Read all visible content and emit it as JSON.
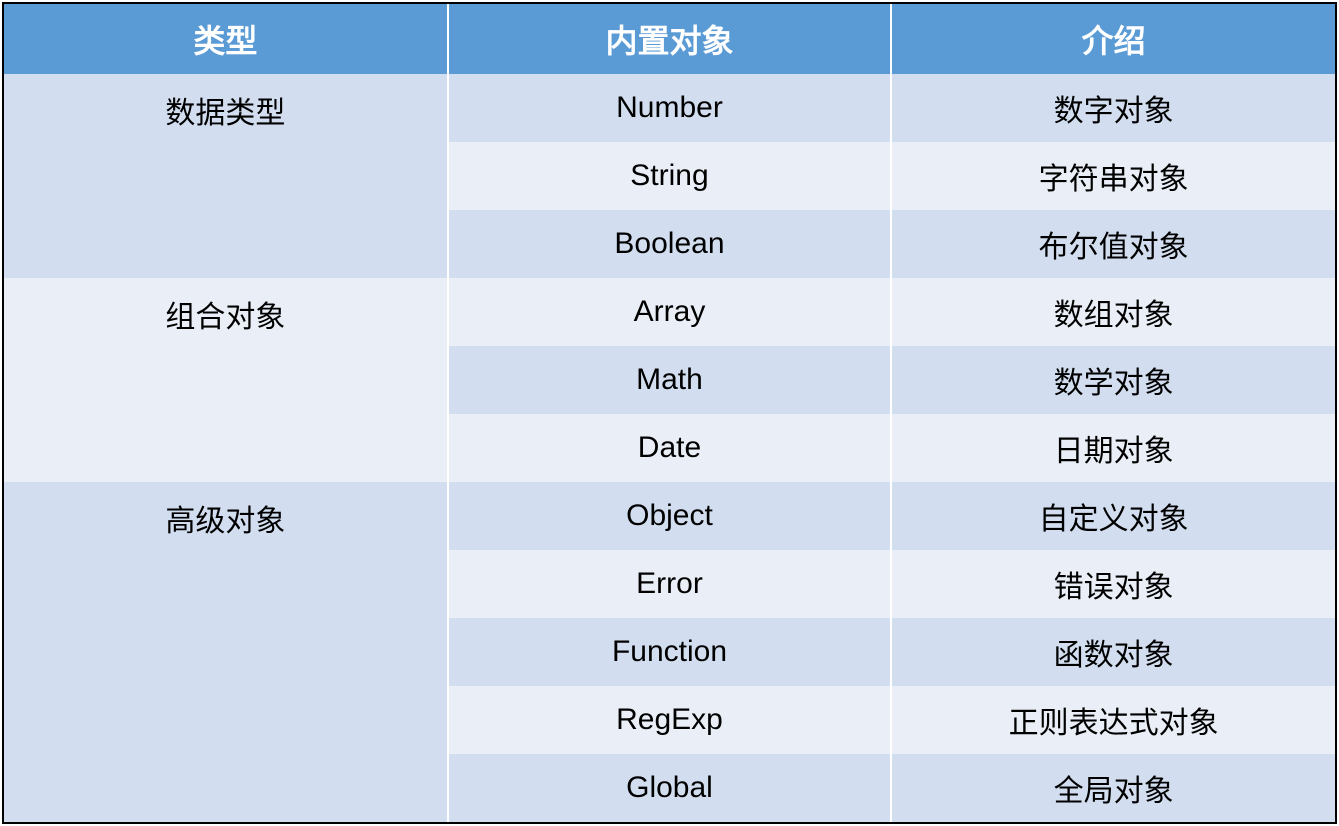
{
  "table": {
    "type": "table",
    "header_bg": "#5b9bd5",
    "header_color": "#ffffff",
    "row_light_bg": "#eaeff7",
    "row_dark_bg": "#d2deef",
    "border_color": "#ffffff",
    "outer_border_color": "#000000",
    "header_fontsize": 32,
    "cell_fontsize": 30,
    "columns": [
      "类型",
      "内置对象",
      "介绍"
    ],
    "groups": [
      {
        "category": "数据类型",
        "rows": [
          {
            "object": "Number",
            "desc": "数字对象",
            "shade": "dark"
          },
          {
            "object": "String",
            "desc": "字符串对象",
            "shade": "light"
          },
          {
            "object": "Boolean",
            "desc": "布尔值对象",
            "shade": "dark"
          }
        ],
        "category_shade": "dark"
      },
      {
        "category": "组合对象",
        "rows": [
          {
            "object": "Array",
            "desc": "数组对象",
            "shade": "light"
          },
          {
            "object": "Math",
            "desc": "数学对象",
            "shade": "dark"
          },
          {
            "object": "Date",
            "desc": "日期对象",
            "shade": "light"
          }
        ],
        "category_shade": "light"
      },
      {
        "category": "高级对象",
        "rows": [
          {
            "object": "Object",
            "desc": "自定义对象",
            "shade": "dark"
          },
          {
            "object": "Error",
            "desc": "错误对象",
            "shade": "light"
          },
          {
            "object": "Function",
            "desc": "函数对象",
            "shade": "dark"
          },
          {
            "object": "RegExp",
            "desc": "正则表达式对象",
            "shade": "light"
          },
          {
            "object": "Global",
            "desc": "全局对象",
            "shade": "dark"
          }
        ],
        "category_shade": "dark"
      }
    ]
  }
}
